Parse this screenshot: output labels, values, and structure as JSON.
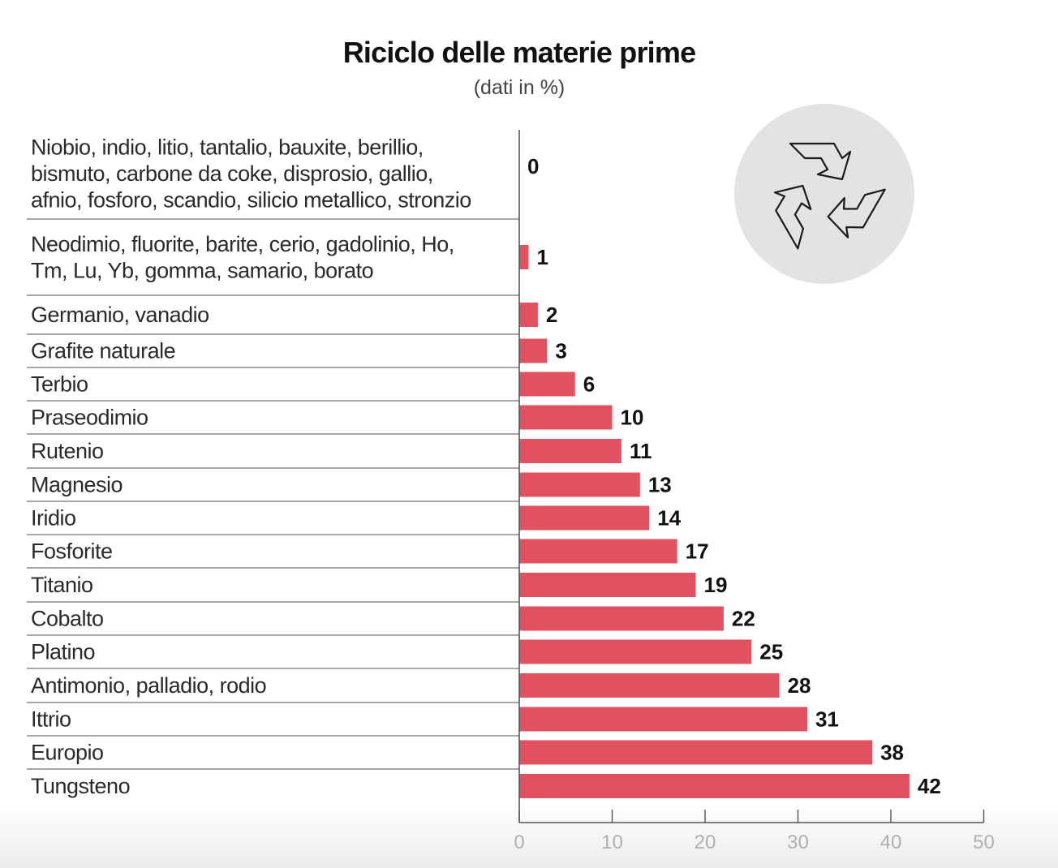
{
  "title": "Riciclo delle materie prime",
  "subtitle": "(dati in %)",
  "icon": "recycle-icon",
  "colors": {
    "bar": "#e0525f",
    "divider": "#8a8a8a",
    "axis": "#555555",
    "tick_label": "#b0b0b0",
    "icon_bg": "#e3e3e3"
  },
  "chart_data": {
    "type": "bar",
    "orientation": "horizontal",
    "title": "Riciclo delle materie prime",
    "subtitle": "(dati in %)",
    "categories": [
      [
        "Niobio, indio, litio, tantalio, bauxite, berillio,",
        "bismuto, carbone da coke, disprosio, gallio,",
        "afnio, fosforo, scandio, silicio metallico, stronzio"
      ],
      [
        "Neodimio, fluorite, barite, cerio, gadolinio, Ho,",
        "Tm, Lu, Yb, gomma, samario, borato"
      ],
      [
        "Germanio, vanadio"
      ],
      [
        "Grafite naturale"
      ],
      [
        "Terbio"
      ],
      [
        "Praseodimio"
      ],
      [
        "Rutenio"
      ],
      [
        "Magnesio"
      ],
      [
        "Iridio"
      ],
      [
        "Fosforite"
      ],
      [
        "Titanio"
      ],
      [
        "Cobalto"
      ],
      [
        "Platino"
      ],
      [
        "Antimonio, palladio, rodio"
      ],
      [
        "Ittrio"
      ],
      [
        "Europio"
      ],
      [
        "Tungsteno"
      ]
    ],
    "values": [
      0,
      1,
      2,
      3,
      6,
      10,
      11,
      13,
      14,
      17,
      19,
      22,
      25,
      28,
      31,
      38,
      42
    ],
    "xlim": [
      0,
      50
    ],
    "xticks": [
      0,
      10,
      20,
      30,
      40,
      50
    ],
    "grid": false,
    "legend": "none"
  }
}
